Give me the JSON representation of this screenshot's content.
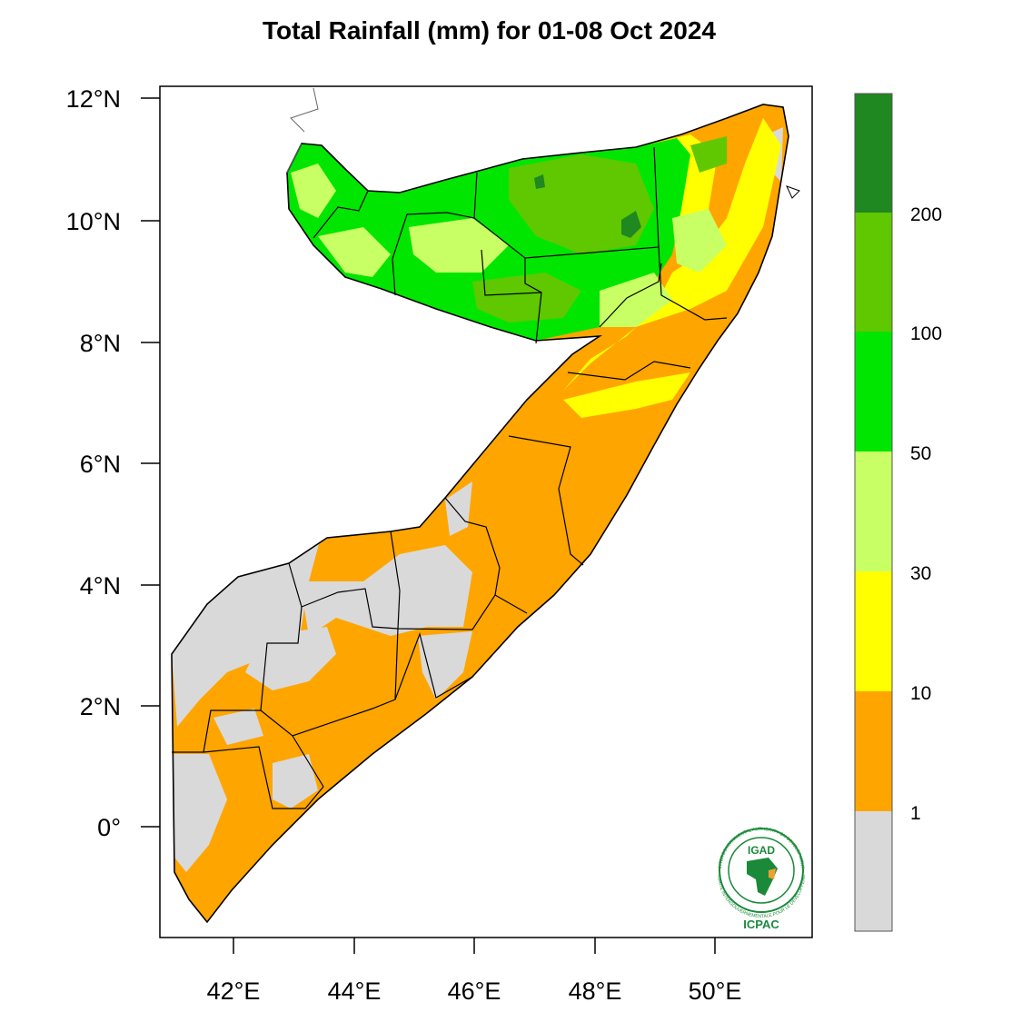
{
  "title": "Total Rainfall (mm) for 01-08 Oct 2024",
  "map": {
    "x_ticks": [
      "42°E",
      "44°E",
      "46°E",
      "48°E",
      "50°E"
    ],
    "y_ticks": [
      "12°N",
      "10°N",
      "8°N",
      "6°N",
      "4°N",
      "2°N",
      "0°"
    ]
  },
  "legend": {
    "colors": [
      "#d9d9d9",
      "#ffa500",
      "#ffff00",
      "#c8ff64",
      "#00e600",
      "#5fc800",
      "#208820"
    ],
    "labels": [
      "1",
      "10",
      "30",
      "50",
      "100",
      "200"
    ]
  },
  "logo": {
    "top_text": "IGAD",
    "bottom_text": "ICPAC",
    "ring_text_top": "INTERGOVERNMENTAL AUTHORITY ON DEVELOPMENT",
    "ring_text_bottom": "AUTORITÉ INTERGOUVERNEMENTALE POUR LE DÉVELOPPEMENT"
  }
}
